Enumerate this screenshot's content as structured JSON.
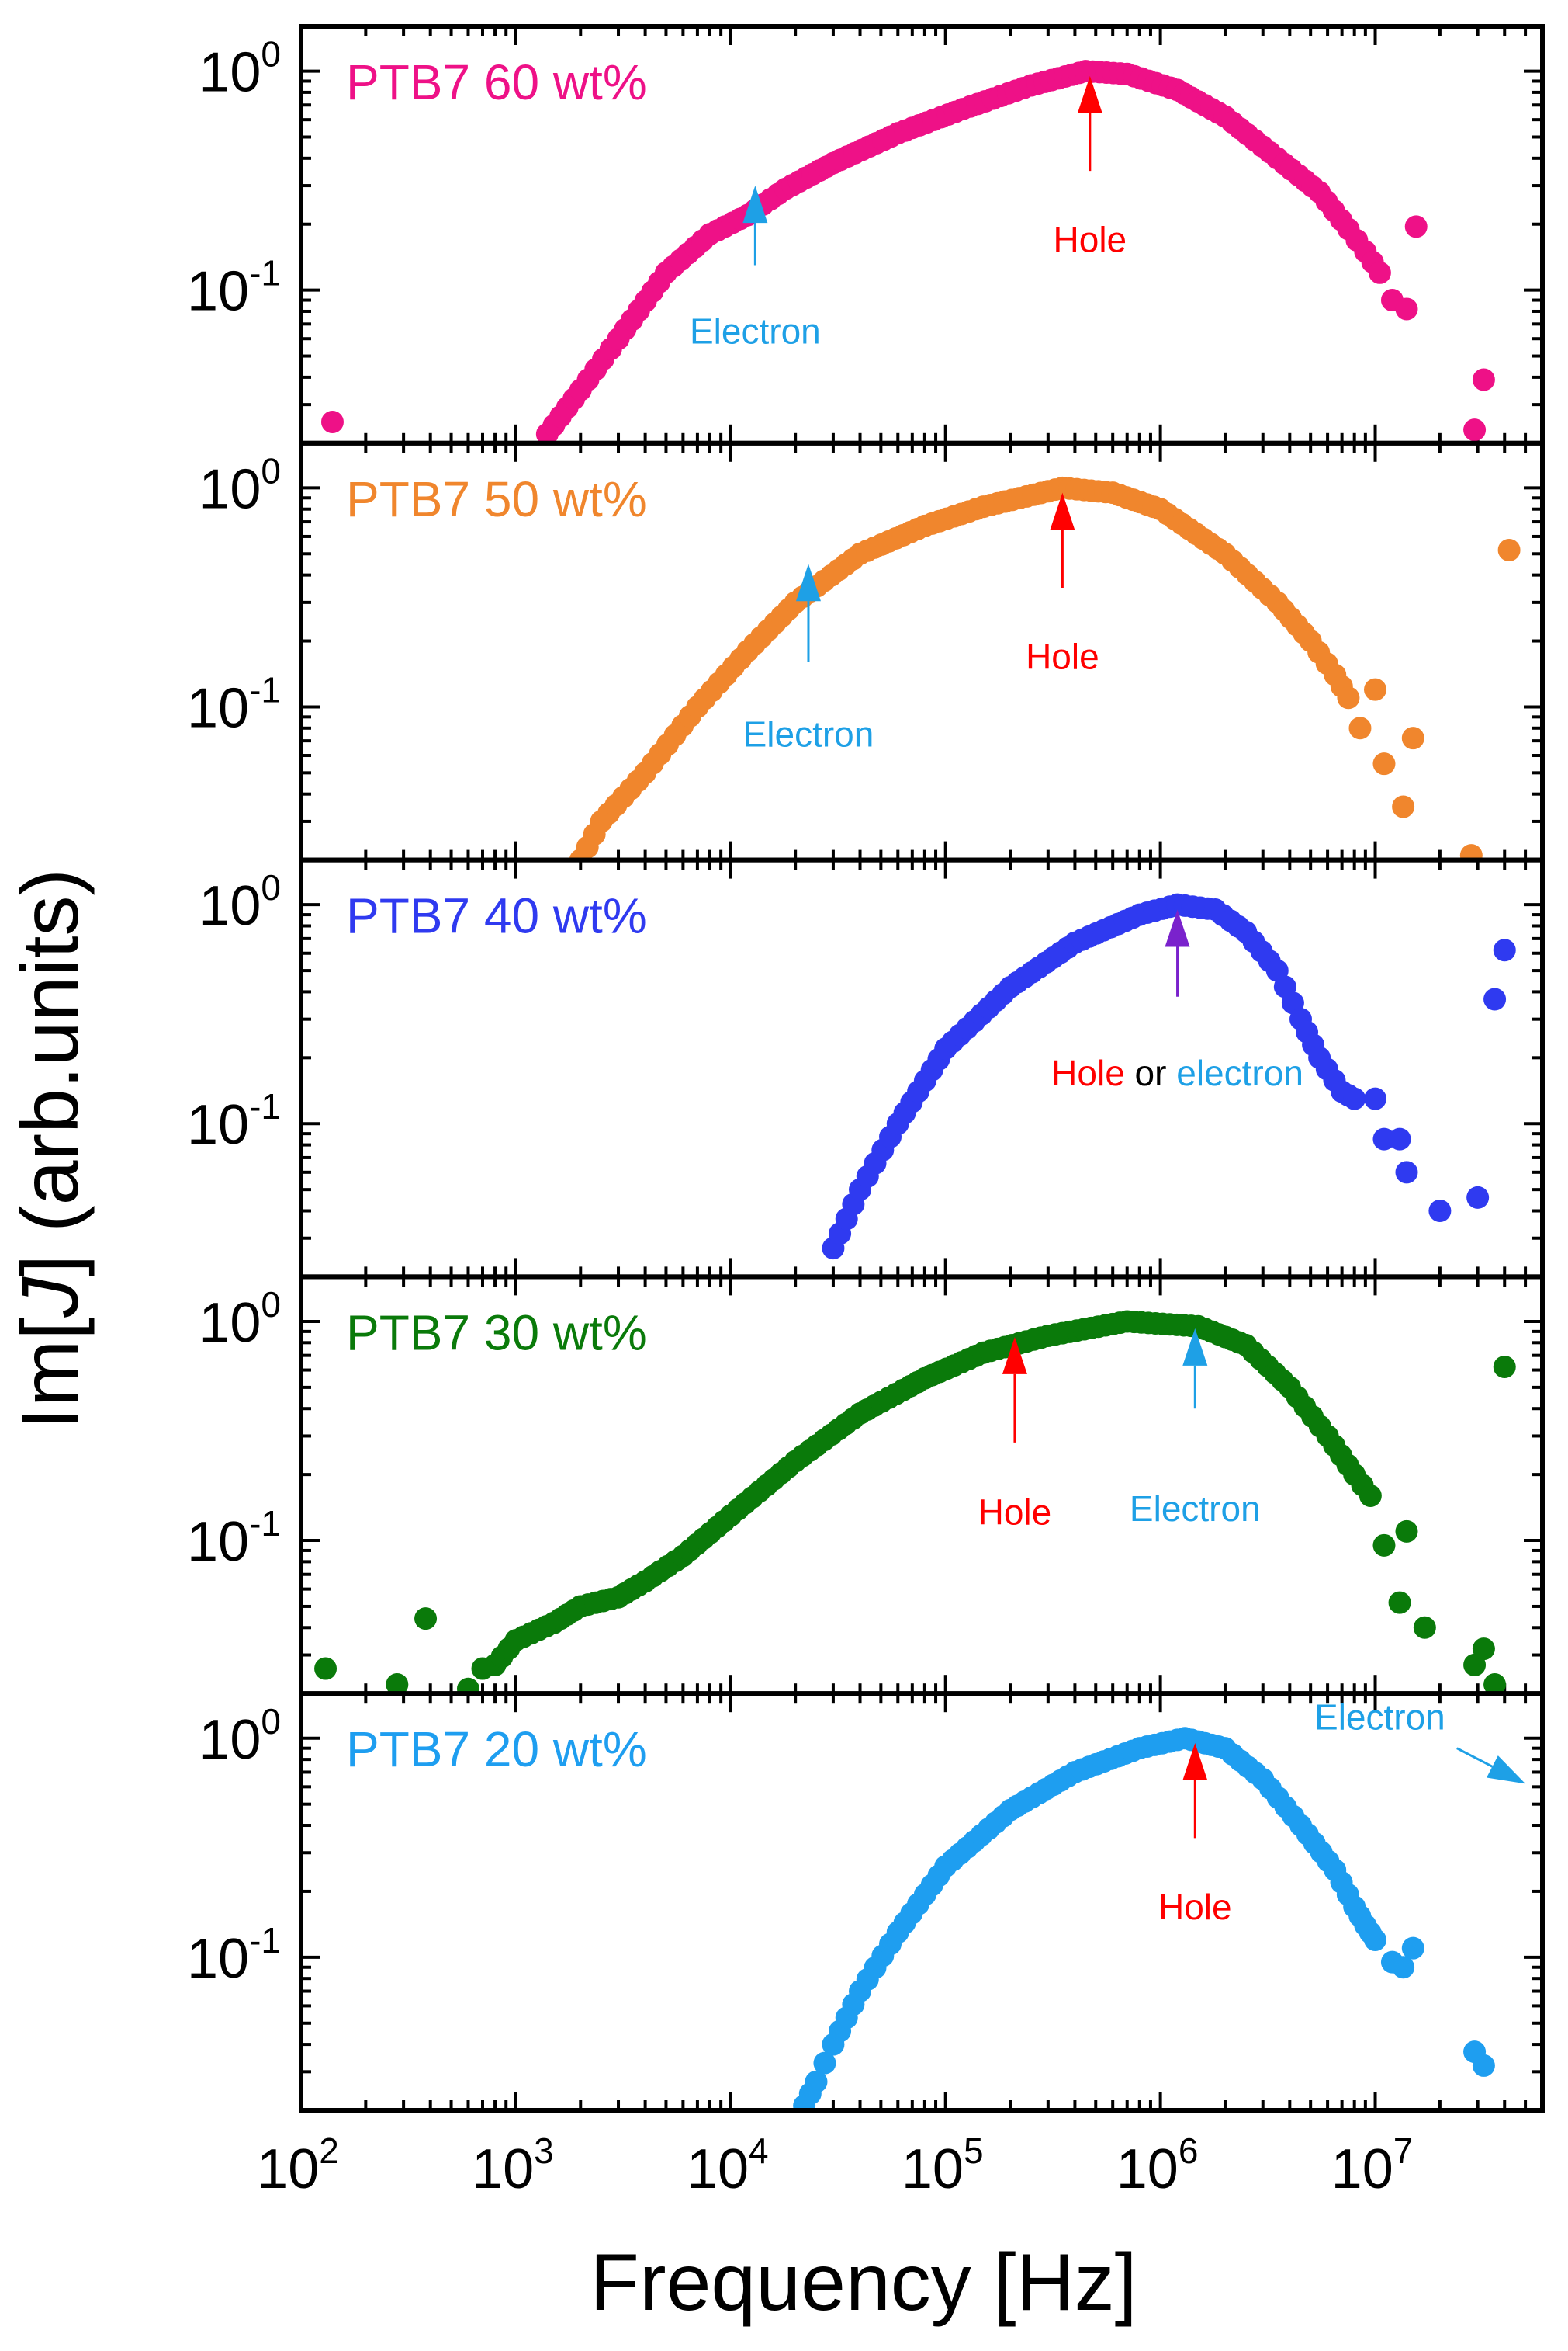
{
  "figure": {
    "ylabel": "Im[J] (arb.units)",
    "ylabel_prefix": "Im[",
    "ylabel_var": "J",
    "ylabel_suffix": "] (arb.units)",
    "xlabel": "Frequency [Hz]"
  },
  "chart_data": {
    "type": "scatter",
    "layout": "5 vertically stacked panels sharing the x axis",
    "xscale": "log",
    "yscale": "log",
    "xlim": [
      100,
      60000000
    ],
    "ylim": [
      0.02,
      1.6
    ],
    "xlabel": "Frequency [Hz]",
    "ylabel": "Im[J] (arb.units)",
    "x_ticks": [
      {
        "base": "10",
        "exp": "2",
        "value": 100
      },
      {
        "base": "10",
        "exp": "3",
        "value": 1000
      },
      {
        "base": "10",
        "exp": "4",
        "value": 10000
      },
      {
        "base": "10",
        "exp": "5",
        "value": 100000
      },
      {
        "base": "10",
        "exp": "6",
        "value": 1000000
      },
      {
        "base": "10",
        "exp": "7",
        "value": 10000000
      }
    ],
    "y_ticks": [
      {
        "base": "10",
        "exp": "0",
        "value": 1
      },
      {
        "base": "10",
        "exp": "-1",
        "value": 0.1
      }
    ],
    "panels": [
      {
        "label": "PTB7 60 wt%",
        "color": "#ee1187",
        "peak_hz": 450000,
        "curve": [
          [
            1400,
            0.022
          ],
          [
            2000,
            0.035
          ],
          [
            3000,
            0.06
          ],
          [
            5000,
            0.12
          ],
          [
            8000,
            0.18
          ],
          [
            12000,
            0.22
          ],
          [
            18000,
            0.29
          ],
          [
            30000,
            0.38
          ],
          [
            60000,
            0.52
          ],
          [
            120000,
            0.67
          ],
          [
            250000,
            0.86
          ],
          [
            450000,
            1.0
          ],
          [
            700000,
            0.97
          ],
          [
            1200000,
            0.82
          ],
          [
            2000000,
            0.62
          ],
          [
            3500000,
            0.4
          ],
          [
            5500000,
            0.28
          ],
          [
            7500000,
            0.19
          ],
          [
            9000000,
            0.15
          ],
          [
            10500000,
            0.12
          ]
        ],
        "extra_points": [
          [
            140,
            0.025
          ],
          [
            12000000,
            0.09
          ],
          [
            14000000,
            0.082
          ],
          [
            15500000,
            0.195
          ],
          [
            29000000,
            0.023
          ],
          [
            32000000,
            0.039
          ]
        ],
        "annotations": [
          {
            "text": "Electron",
            "color": "#1ea0e6",
            "x": 13000,
            "y_tip": 0.3,
            "y_tail": 0.13,
            "label_y": 0.065
          },
          {
            "text": "Hole",
            "color": "#ff0000",
            "x": 470000,
            "y_tip": 0.95,
            "y_tail": 0.35,
            "label_y": 0.17
          }
        ]
      },
      {
        "label": "PTB7 50 wt%",
        "color": "#f0862d",
        "peak_hz": 350000,
        "curve": [
          [
            2000,
            0.02
          ],
          [
            2500,
            0.03
          ],
          [
            4000,
            0.05
          ],
          [
            7000,
            0.1
          ],
          [
            12000,
            0.18
          ],
          [
            20000,
            0.3
          ],
          [
            40000,
            0.5
          ],
          [
            80000,
            0.67
          ],
          [
            150000,
            0.82
          ],
          [
            350000,
            1.0
          ],
          [
            600000,
            0.95
          ],
          [
            1000000,
            0.8
          ],
          [
            2000000,
            0.5
          ],
          [
            3500000,
            0.3
          ],
          [
            5000000,
            0.2
          ],
          [
            6500000,
            0.14
          ],
          [
            7500000,
            0.11
          ]
        ],
        "extra_points": [
          [
            8500000,
            0.08
          ],
          [
            10000000,
            0.12
          ],
          [
            11000000,
            0.055
          ],
          [
            13500000,
            0.035
          ],
          [
            15000000,
            0.072
          ],
          [
            28000000,
            0.021
          ],
          [
            42000000,
            0.52
          ]
        ],
        "annotations": [
          {
            "text": "Electron",
            "color": "#1ea0e6",
            "x": 23000,
            "y_tip": 0.45,
            "y_tail": 0.16,
            "label_y": 0.075
          },
          {
            "text": "Hole",
            "color": "#ff0000",
            "x": 350000,
            "y_tip": 0.95,
            "y_tail": 0.35,
            "label_y": 0.17
          }
        ]
      },
      {
        "label": "PTB7 40 wt%",
        "color": "#2f3af0",
        "peak_hz": 1200000,
        "curve": [
          [
            30000,
            0.027
          ],
          [
            40000,
            0.05
          ],
          [
            60000,
            0.1
          ],
          [
            100000,
            0.22
          ],
          [
            200000,
            0.42
          ],
          [
            400000,
            0.67
          ],
          [
            800000,
            0.9
          ],
          [
            1200000,
            1.0
          ],
          [
            1800000,
            0.95
          ],
          [
            2500000,
            0.75
          ],
          [
            3500000,
            0.5
          ],
          [
            4500000,
            0.3
          ],
          [
            5500000,
            0.2
          ],
          [
            7000000,
            0.14
          ],
          [
            8000000,
            0.13
          ]
        ],
        "extra_points": [
          [
            10000000,
            0.13
          ],
          [
            11000000,
            0.085
          ],
          [
            13000000,
            0.085
          ],
          [
            14000000,
            0.06
          ],
          [
            20000000,
            0.04
          ],
          [
            30000000,
            0.046
          ],
          [
            36000000,
            0.37
          ],
          [
            40000000,
            0.62
          ]
        ],
        "annotations": [
          {
            "text_parts": [
              {
                "text": "Hole",
                "color": "#ff0000"
              },
              {
                "text": " or ",
                "color": "#000000"
              },
              {
                "text": "electron",
                "color": "#1ea0e6"
              }
            ],
            "color": "#7a22cc",
            "x": 1200000,
            "y_tip": 0.95,
            "y_tail": 0.38,
            "label_y": 0.17
          }
        ]
      },
      {
        "label": "PTB7 30 wt%",
        "color": "#0a7a0a",
        "peak_hz": 700000,
        "curve": [
          [
            800,
            0.027
          ],
          [
            1000,
            0.035
          ],
          [
            1500,
            0.042
          ],
          [
            2000,
            0.05
          ],
          [
            3000,
            0.055
          ],
          [
            4000,
            0.065
          ],
          [
            6000,
            0.085
          ],
          [
            10000,
            0.13
          ],
          [
            20000,
            0.23
          ],
          [
            40000,
            0.38
          ],
          [
            80000,
            0.55
          ],
          [
            150000,
            0.72
          ],
          [
            300000,
            0.86
          ],
          [
            700000,
            1.0
          ],
          [
            1500000,
            0.95
          ],
          [
            2500000,
            0.78
          ],
          [
            4000000,
            0.5
          ],
          [
            6000000,
            0.3
          ],
          [
            8000000,
            0.2
          ],
          [
            9500000,
            0.16
          ]
        ],
        "extra_points": [
          [
            130,
            0.026
          ],
          [
            280,
            0.022
          ],
          [
            380,
            0.044
          ],
          [
            600,
            0.021
          ],
          [
            700,
            0.026
          ],
          [
            11000000,
            0.095
          ],
          [
            13000000,
            0.052
          ],
          [
            14000000,
            0.11
          ],
          [
            17000000,
            0.04
          ],
          [
            29000000,
            0.027
          ],
          [
            32000000,
            0.032
          ],
          [
            36000000,
            0.022
          ],
          [
            40000000,
            0.62
          ]
        ],
        "annotations": [
          {
            "text": "Hole",
            "color": "#ff0000",
            "x": 210000,
            "y_tip": 0.85,
            "y_tail": 0.28,
            "label_y": 0.135
          },
          {
            "text": "Electron",
            "color": "#1ea0e6",
            "x": 1450000,
            "y_tip": 0.93,
            "y_tail": 0.4,
            "label_y": 0.14
          }
        ]
      },
      {
        "label": "PTB7 20 wt%",
        "color": "#1e9ef0",
        "peak_hz": 1300000,
        "curve": [
          [
            22000,
            0.021
          ],
          [
            25000,
            0.027
          ],
          [
            30000,
            0.04
          ],
          [
            40000,
            0.07
          ],
          [
            60000,
            0.13
          ],
          [
            100000,
            0.26
          ],
          [
            200000,
            0.47
          ],
          [
            400000,
            0.7
          ],
          [
            800000,
            0.9
          ],
          [
            1300000,
            1.0
          ],
          [
            2000000,
            0.9
          ],
          [
            3000000,
            0.65
          ],
          [
            4500000,
            0.4
          ],
          [
            6500000,
            0.25
          ],
          [
            8000000,
            0.17
          ],
          [
            9000000,
            0.14
          ],
          [
            10000000,
            0.12
          ]
        ],
        "extra_points": [
          [
            12000000,
            0.095
          ],
          [
            13500000,
            0.09
          ],
          [
            15000000,
            0.11
          ],
          [
            29000000,
            0.037
          ],
          [
            32000000,
            0.032
          ]
        ],
        "annotations": [
          {
            "text": "Hole",
            "color": "#ff0000",
            "x": 1450000,
            "y_tip": 0.95,
            "y_tail": 0.35,
            "label_y": 0.17
          },
          {
            "text": "Electron",
            "color": "#1ea0e6",
            "x_text": 10500000,
            "label_y": 1.25,
            "arrow_from": [
              24000000,
              0.9
            ],
            "arrow_to": [
              50000000,
              0.62
            ]
          }
        ]
      }
    ]
  }
}
